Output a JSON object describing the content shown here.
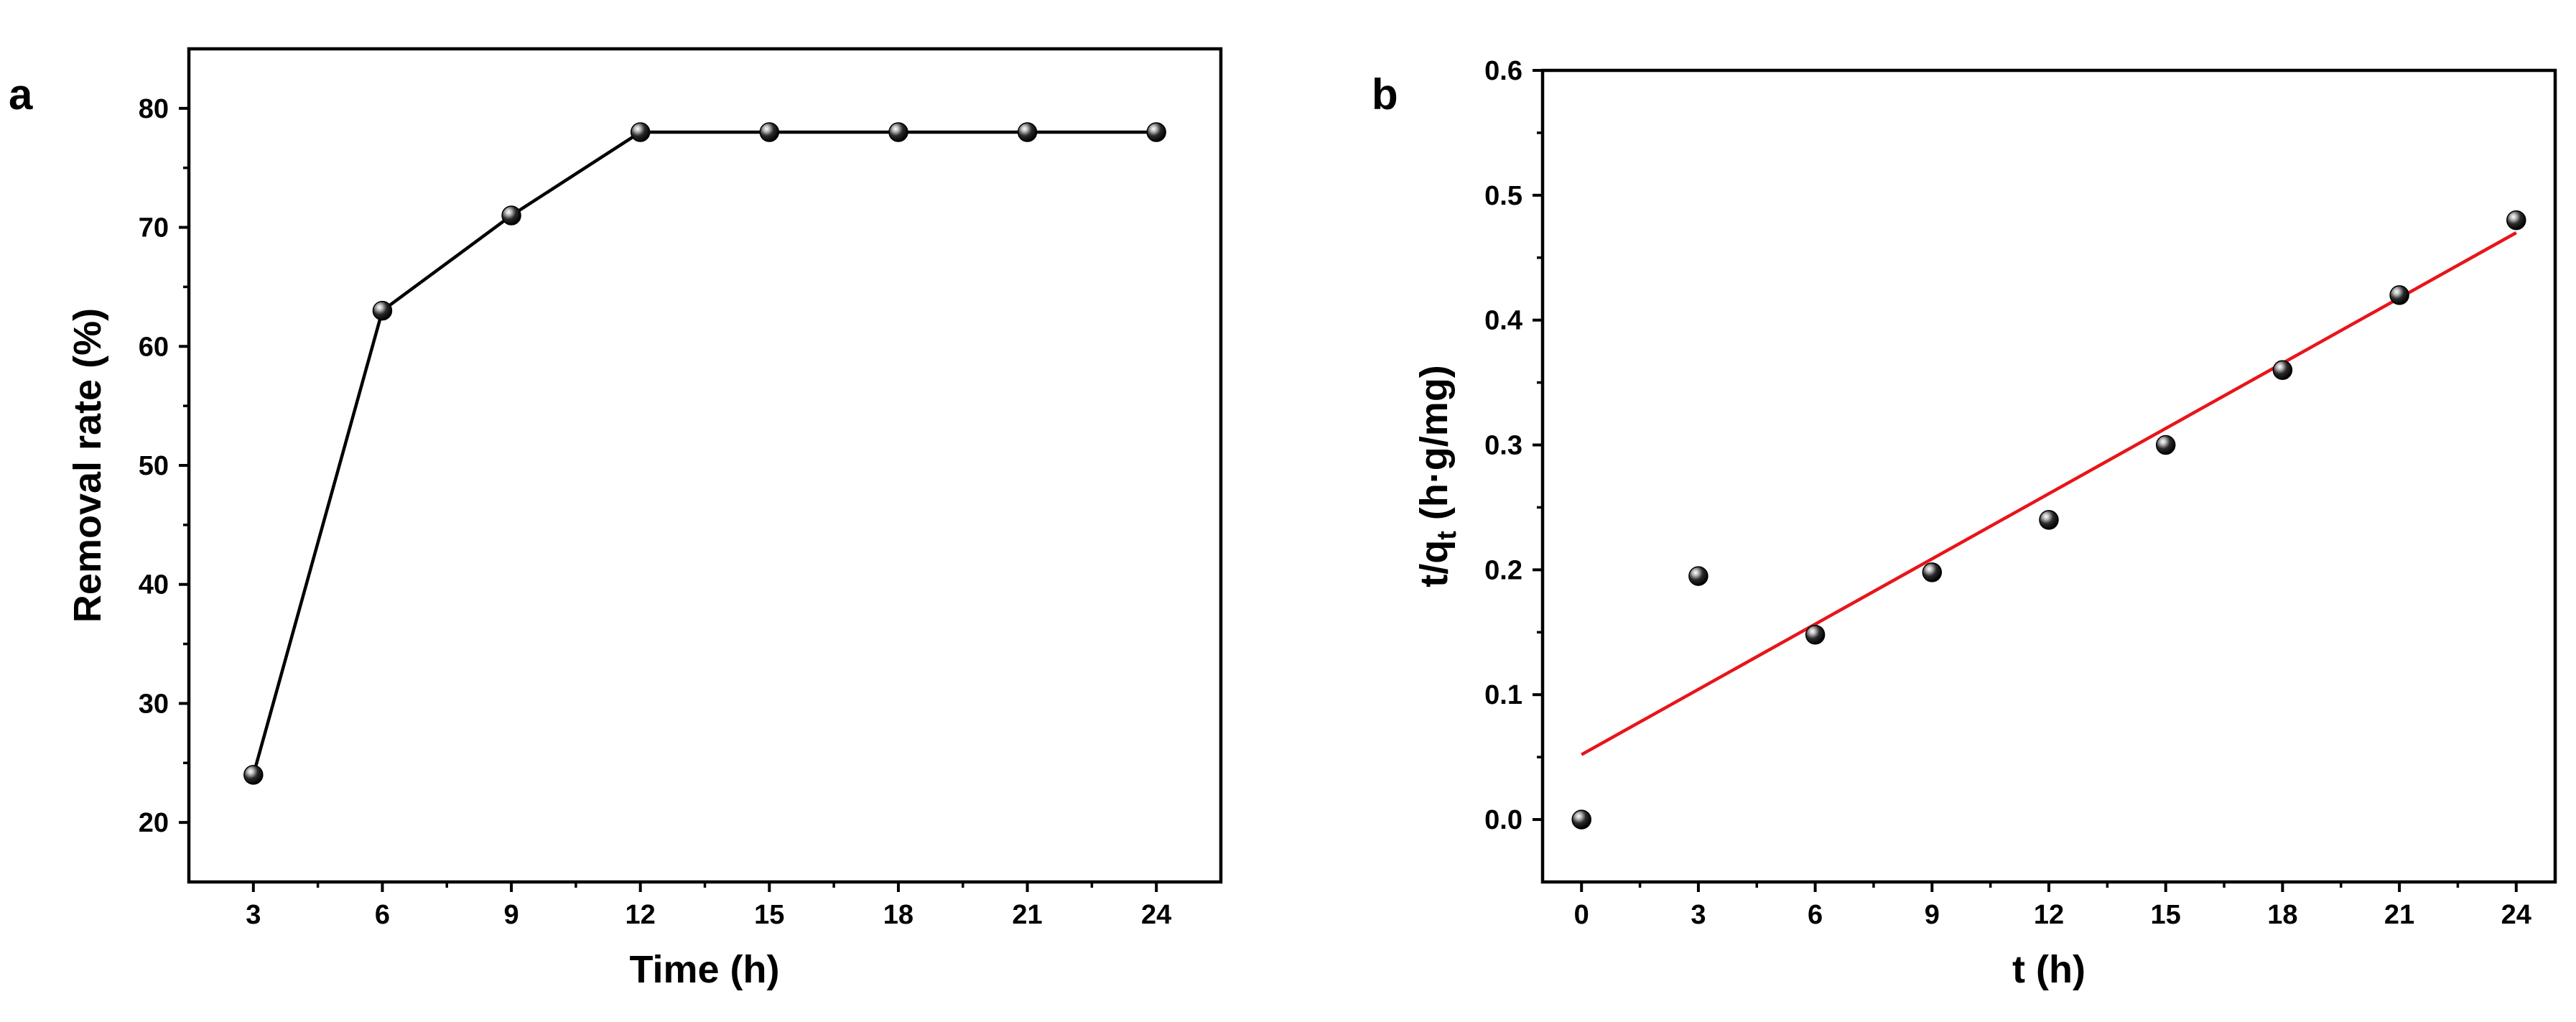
{
  "colors": {
    "fit_line": "#e8141a",
    "marker": "#000000",
    "axes": "#000000"
  },
  "chart_data": [
    {
      "panel": "a",
      "type": "line",
      "markers": "black-sphere",
      "xlabel": "Time (h)",
      "ylabel": "Removal rate (%)",
      "xlim": [
        1.5,
        25.5
      ],
      "ylim": [
        15,
        85
      ],
      "xticks": [
        3,
        6,
        9,
        12,
        15,
        18,
        21,
        24
      ],
      "yticks": [
        20,
        30,
        40,
        50,
        60,
        70,
        80
      ],
      "x": [
        3,
        6,
        9,
        12,
        15,
        18,
        21,
        24
      ],
      "y": [
        24,
        63,
        71,
        78,
        78,
        78,
        78,
        78
      ]
    },
    {
      "panel": "b",
      "type": "scatter",
      "markers": "black-sphere",
      "xlabel": "t (h)",
      "ylabel_main": "t/q",
      "ylabel_sub": "t",
      "ylabel_rest": " (h·g/mg)",
      "xlim": [
        -1,
        25
      ],
      "ylim": [
        -0.05,
        0.6
      ],
      "xticks": [
        0,
        3,
        6,
        9,
        12,
        15,
        18,
        21,
        24
      ],
      "yticks": [
        0.0,
        0.1,
        0.2,
        0.3,
        0.4,
        0.5,
        0.6
      ],
      "ytick_labels": [
        "0.0",
        "0.1",
        "0.2",
        "0.3",
        "0.4",
        "0.5",
        "0.6"
      ],
      "x": [
        0,
        3,
        6,
        9,
        12,
        15,
        18,
        21,
        24
      ],
      "y": [
        0.0,
        0.195,
        0.148,
        0.198,
        0.24,
        0.3,
        0.36,
        0.42,
        0.48
      ],
      "fit": {
        "x": [
          0,
          24
        ],
        "y": [
          0.052,
          0.47
        ],
        "color": "#e8141a"
      }
    }
  ]
}
